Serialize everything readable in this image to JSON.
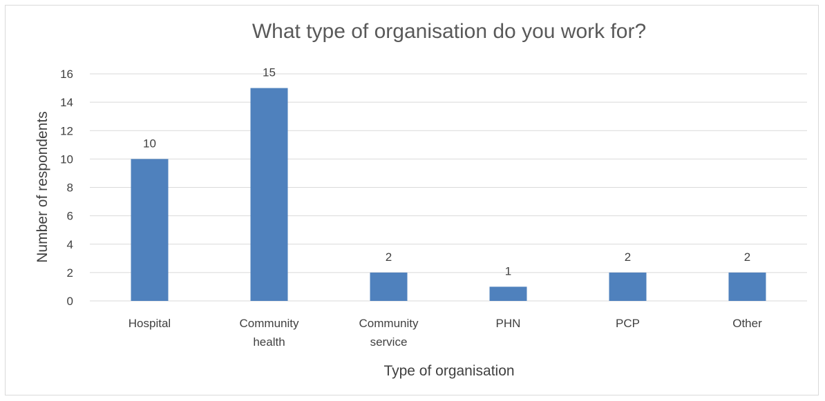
{
  "chart_data": {
    "type": "bar",
    "title": "What type of organisation do you work for?",
    "xlabel": "Type of organisation",
    "ylabel": "Number of respondents",
    "categories": [
      [
        "Hospital"
      ],
      [
        "Community",
        "health"
      ],
      [
        "Community",
        "service"
      ],
      [
        "PHN"
      ],
      [
        "PCP"
      ],
      [
        "Other"
      ]
    ],
    "values": [
      10,
      15,
      2,
      1,
      2,
      2
    ],
    "ylim": [
      0,
      16
    ],
    "yticks": [
      0,
      2,
      4,
      6,
      8,
      10,
      12,
      14,
      16
    ],
    "grid": true,
    "legend": "none",
    "bar_color": "#4f81bd",
    "grid_color": "#d9d9d9"
  }
}
